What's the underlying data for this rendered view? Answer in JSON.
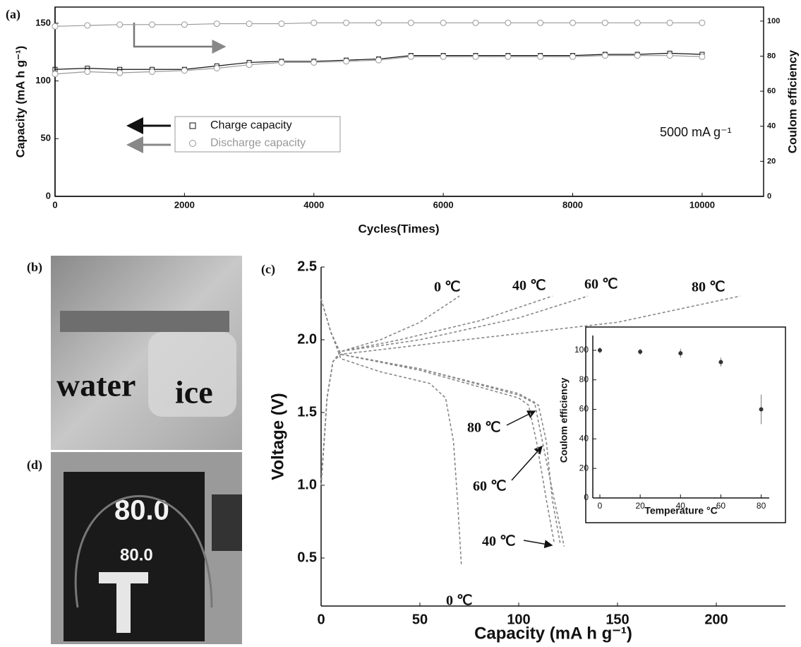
{
  "chart_data": [
    {
      "type": "line",
      "label": "(a)",
      "xlabel": "Cycles(Times)",
      "ylabel": "Capacity (mA h g⁻¹)",
      "y2label": "Coulom efficiency",
      "x": [
        0,
        500,
        1000,
        1500,
        2000,
        2500,
        3000,
        3500,
        4000,
        4500,
        5000,
        5500,
        6000,
        6500,
        7000,
        7500,
        8000,
        8500,
        9000,
        9500,
        10000
      ],
      "series": [
        {
          "name": "Charge capacity",
          "color": "#111111",
          "marker": "square",
          "values": [
            110,
            111,
            110,
            110,
            110,
            113,
            116,
            117,
            117,
            118,
            119,
            122,
            122,
            122,
            122,
            122,
            122,
            123,
            123,
            124,
            123
          ]
        },
        {
          "name": "Discharge capacity",
          "color": "#999999",
          "marker": "circle",
          "values": [
            106,
            108,
            107,
            108,
            109,
            111,
            114,
            116,
            116,
            117,
            118,
            121,
            121,
            121,
            121,
            121,
            121,
            122,
            122,
            122,
            121
          ]
        },
        {
          "color": "#999999",
          "marker": "circle",
          "axis": "y2",
          "values": [
            97,
            97.5,
            98,
            98,
            98,
            98.5,
            98.5,
            98.5,
            99,
            99,
            99,
            99,
            99,
            99,
            99,
            99,
            99,
            99,
            99,
            99,
            99
          ]
        }
      ],
      "xlim": [
        0,
        10950
      ],
      "xticks": [
        0,
        2000,
        4000,
        6000,
        8000,
        10000
      ],
      "ylim": [
        0,
        164
      ],
      "yticks": [
        0,
        50,
        100,
        150
      ],
      "y2lim": [
        0,
        108
      ],
      "y2ticks": [
        0,
        20,
        40,
        60,
        80,
        100
      ],
      "legend": "center left",
      "annotations": [
        "5000 mA g⁻¹"
      ]
    },
    {
      "type": "line",
      "label": "(c)",
      "xlabel": "Capacity (mA h g⁻¹)",
      "ylabel": "Voltage (V)",
      "series": [
        {
          "color": "#888888",
          "dash": true,
          "x": [
            0,
            3,
            6,
            10,
            30,
            50,
            70
          ],
          "values": [
            1.0,
            1.6,
            1.85,
            1.92,
            2.0,
            2.12,
            2.3
          ]
        },
        {
          "color": "#888888",
          "dash": true,
          "x": [
            0,
            3,
            6,
            10,
            40,
            80,
            117
          ],
          "values": [
            1.0,
            1.6,
            1.85,
            1.92,
            2.0,
            2.13,
            2.3
          ]
        },
        {
          "color": "#888888",
          "dash": true,
          "x": [
            0,
            3,
            6,
            10,
            50,
            100,
            135
          ],
          "values": [
            1.0,
            1.6,
            1.85,
            1.92,
            2.0,
            2.15,
            2.3
          ]
        },
        {
          "color": "#888888",
          "dash": true,
          "x": [
            0,
            3,
            6,
            10,
            60,
            150,
            212
          ],
          "values": [
            1.0,
            1.6,
            1.85,
            1.9,
            1.98,
            2.12,
            2.3
          ]
        },
        {
          "color": "#888888",
          "dash": true,
          "x": [
            0,
            5,
            10,
            30,
            55,
            63,
            67,
            69,
            71
          ],
          "values": [
            2.28,
            2.05,
            1.87,
            1.78,
            1.7,
            1.6,
            1.3,
            0.9,
            0.45
          ]
        },
        {
          "color": "#888888",
          "dash": true,
          "x": [
            0,
            5,
            10,
            50,
            100,
            110,
            114,
            117,
            121
          ],
          "values": [
            2.28,
            2.05,
            1.9,
            1.8,
            1.62,
            1.55,
            1.3,
            0.9,
            0.6
          ]
        },
        {
          "color": "#888888",
          "dash": true,
          "x": [
            0,
            5,
            10,
            50,
            100,
            108,
            112,
            118,
            123
          ],
          "values": [
            2.28,
            2.05,
            1.9,
            1.8,
            1.63,
            1.57,
            1.3,
            0.9,
            0.58
          ]
        },
        {
          "color": "#888888",
          "dash": true,
          "x": [
            0,
            5,
            10,
            50,
            100,
            105,
            109,
            114,
            118
          ],
          "values": [
            2.28,
            2.05,
            1.9,
            1.79,
            1.6,
            1.55,
            1.3,
            0.9,
            0.6
          ]
        }
      ],
      "xlim": [
        0,
        235
      ],
      "xticks": [
        0,
        50,
        100,
        150,
        200
      ],
      "ylim": [
        0.17,
        2.5
      ],
      "yticks": [
        0.5,
        {
          "value": 1,
          "label": "1.0"
        },
        1.5,
        {
          "value": 2,
          "label": "2.0"
        },
        2.5
      ],
      "annotations": [
        "0 ℃",
        "40 ℃",
        "60 ℃",
        "80 ℃",
        "80 ℃",
        "60 ℃",
        "40 ℃",
        "0 ℃"
      ]
    },
    {
      "type": "scatter",
      "xlabel": "Temperature °C",
      "ylabel": "Coulom efficiency",
      "color": "#333333",
      "x": [
        0,
        20,
        40,
        60,
        80
      ],
      "values": [
        100,
        99,
        98,
        92,
        60
      ],
      "errors": [
        2,
        2,
        3,
        3,
        10
      ],
      "xlim": [
        -3.5,
        84
      ],
      "xticks": [
        0,
        20,
        40,
        60,
        80
      ],
      "ylim": [
        0,
        110
      ],
      "yticks": [
        0,
        20,
        40,
        60,
        80,
        100
      ]
    }
  ],
  "photos": [
    {
      "label": "(b)",
      "texts": [
        "water",
        "ice"
      ]
    },
    {
      "label": "(d)",
      "texts": [
        "80.0",
        "80.0"
      ]
    }
  ]
}
